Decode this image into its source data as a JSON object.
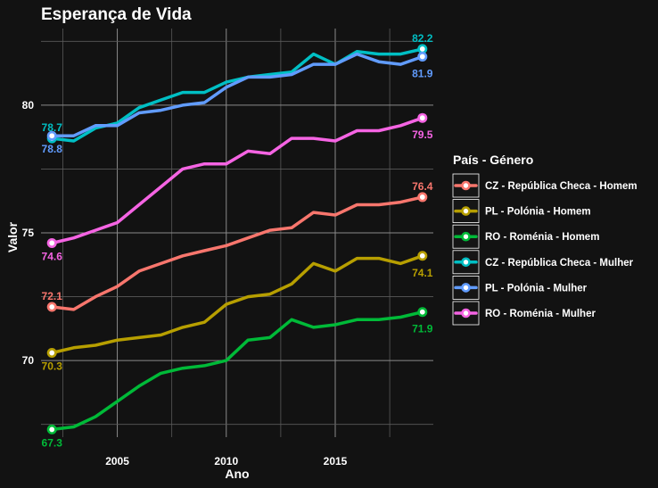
{
  "chart_data": {
    "type": "line",
    "title": "Esperança de Vida",
    "xlabel": "Ano",
    "ylabel": "Valor",
    "xlim": [
      2001.5,
      2019.5
    ],
    "ylim": [
      67.0,
      83.0
    ],
    "x_ticks": [
      2005,
      2010,
      2015
    ],
    "y_ticks": [
      70,
      75,
      80
    ],
    "grid": true,
    "legend_title": "País - Género",
    "legend_position": "right",
    "x": [
      2002,
      2003,
      2004,
      2005,
      2006,
      2007,
      2008,
      2009,
      2010,
      2011,
      2012,
      2013,
      2014,
      2015,
      2016,
      2017,
      2018,
      2019
    ],
    "series": [
      {
        "name": "CZ - República Checa - Homem",
        "color": "#F8766D",
        "values": [
          72.1,
          72.0,
          72.5,
          72.9,
          73.5,
          73.8,
          74.1,
          74.3,
          74.5,
          74.8,
          75.1,
          75.2,
          75.8,
          75.7,
          76.1,
          76.1,
          76.2,
          76.4
        ],
        "first_label": "72.1",
        "last_label": "76.4"
      },
      {
        "name": "PL - Polónia - Homem",
        "color": "#B79F00",
        "values": [
          70.3,
          70.5,
          70.6,
          70.8,
          70.9,
          71.0,
          71.3,
          71.5,
          72.2,
          72.5,
          72.6,
          73.0,
          73.8,
          73.5,
          74.0,
          74.0,
          73.8,
          74.1
        ],
        "first_label": "70.3",
        "last_label": "74.1"
      },
      {
        "name": "RO - Roménia - Homem",
        "color": "#00BA38",
        "values": [
          67.3,
          67.4,
          67.8,
          68.4,
          69.0,
          69.5,
          69.7,
          69.8,
          70.0,
          70.8,
          70.9,
          71.6,
          71.3,
          71.4,
          71.6,
          71.6,
          71.7,
          71.9
        ],
        "first_label": "67.3",
        "last_label": "71.9"
      },
      {
        "name": "CZ - República Checa - Mulher",
        "color": "#00BFC4",
        "values": [
          78.7,
          78.6,
          79.1,
          79.3,
          79.9,
          80.2,
          80.5,
          80.5,
          80.9,
          81.1,
          81.2,
          81.3,
          82.0,
          81.6,
          82.1,
          82.0,
          82.0,
          82.2
        ],
        "first_label": "78.7",
        "last_label": "82.2"
      },
      {
        "name": "PL - Polónia - Mulher",
        "color": "#619CFF",
        "values": [
          78.8,
          78.8,
          79.2,
          79.2,
          79.7,
          79.8,
          80.0,
          80.1,
          80.7,
          81.1,
          81.1,
          81.2,
          81.6,
          81.6,
          82.0,
          81.7,
          81.6,
          81.9
        ],
        "first_label": "78.8",
        "last_label": "81.9"
      },
      {
        "name": "RO - Roménia - Mulher",
        "color": "#F564E3",
        "values": [
          74.6,
          74.8,
          75.1,
          75.4,
          76.1,
          76.8,
          77.5,
          77.7,
          77.7,
          78.2,
          78.1,
          78.7,
          78.7,
          78.6,
          79.0,
          79.0,
          79.2,
          79.5
        ],
        "first_label": "74.6",
        "last_label": "79.5"
      }
    ]
  }
}
